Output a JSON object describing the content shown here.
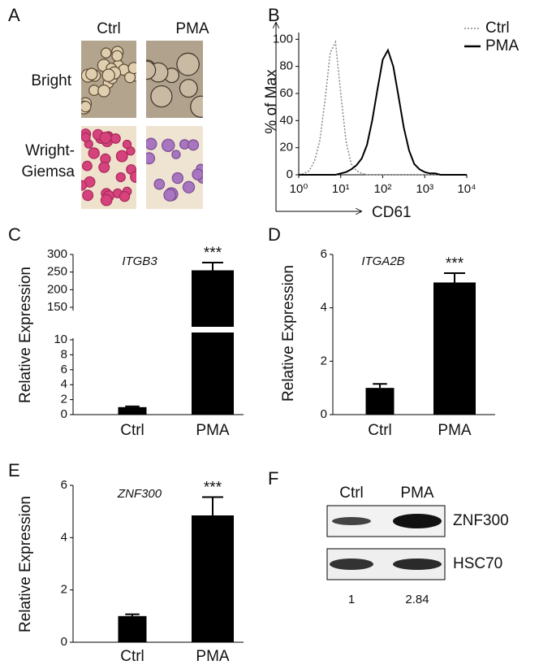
{
  "panel_a": {
    "label": "A",
    "columns": [
      "Ctrl",
      "PMA"
    ],
    "rows": [
      {
        "lines": [
          "Bright"
        ]
      },
      {
        "lines": [
          "Wright-",
          "Giemsa"
        ]
      }
    ]
  },
  "panel_f": {
    "label": "F",
    "lanes": [
      "Ctrl",
      "PMA"
    ],
    "bands": [
      "ZNF300",
      "HSC70"
    ],
    "quantification": [
      1,
      2.84
    ]
  },
  "chart_data": [
    {
      "type": "line",
      "label": "B",
      "xlabel": "CD61",
      "ylabel": "% of Max",
      "xscale": "log",
      "x": [
        1,
        1.33,
        1.78,
        2.37,
        3.16,
        4.22,
        5.62,
        7.5,
        10,
        13.3,
        17.8,
        23.7,
        31.6,
        42.2,
        56.2,
        75,
        100,
        133,
        178,
        237,
        316,
        422,
        562,
        750,
        1000,
        1330,
        1780,
        2370,
        3160,
        4220,
        5620,
        7500,
        10000
      ],
      "series": [
        {
          "name": "Ctrl",
          "color": "#888888",
          "style": "dotted",
          "values": [
            0,
            1,
            3,
            10,
            25,
            55,
            90,
            98,
            60,
            25,
            8,
            3,
            1,
            0,
            0,
            0,
            0,
            0,
            0,
            0,
            0,
            0,
            0,
            0,
            0,
            0,
            0,
            0,
            0,
            0,
            0,
            0,
            0
          ]
        },
        {
          "name": "PMA",
          "color": "#000000",
          "style": "solid",
          "values": [
            0,
            0,
            0,
            0,
            0,
            0,
            0,
            0,
            1,
            2,
            4,
            7,
            12,
            22,
            40,
            63,
            85,
            92,
            80,
            58,
            35,
            18,
            8,
            4,
            2,
            1,
            1,
            0,
            0,
            0,
            0,
            0,
            0
          ]
        }
      ],
      "xlim": [
        1,
        10000
      ],
      "xticks": [
        {
          "value": 1,
          "label": "10⁰"
        },
        {
          "value": 10,
          "label": "10¹"
        },
        {
          "value": 100,
          "label": "10²"
        },
        {
          "value": 1000,
          "label": "10³"
        },
        {
          "value": 10000,
          "label": "10⁴"
        }
      ],
      "ylim": [
        0,
        105
      ],
      "yticks": [
        0,
        20,
        40,
        60,
        80,
        100
      ],
      "legend": "top-right"
    },
    {
      "type": "bar",
      "label": "C",
      "title": "ITGB3",
      "ylabel": "Relative Expression",
      "categories": [
        "Ctrl",
        "PMA"
      ],
      "values": [
        1.0,
        255
      ],
      "errors": [
        0.1,
        22
      ],
      "color": "#000000",
      "annotations": [
        null,
        "***"
      ],
      "ylim": [
        0,
        300
      ],
      "y_break": [
        10,
        150
      ],
      "yticks": [
        0,
        2,
        4,
        6,
        8,
        10,
        150,
        200,
        250,
        300
      ]
    },
    {
      "type": "bar",
      "label": "D",
      "title": "ITGA2B",
      "ylabel": "Relative Expression",
      "categories": [
        "Ctrl",
        "PMA"
      ],
      "values": [
        1.0,
        4.95
      ],
      "errors": [
        0.15,
        0.35
      ],
      "color": "#000000",
      "annotations": [
        null,
        "***"
      ],
      "ylim": [
        0,
        6
      ],
      "yticks": [
        0,
        2,
        4,
        6
      ]
    },
    {
      "type": "bar",
      "label": "E",
      "title": "ZNF300",
      "ylabel": "Relative Expression",
      "categories": [
        "Ctrl",
        "PMA"
      ],
      "values": [
        1.0,
        4.85
      ],
      "errors": [
        0.07,
        0.7
      ],
      "color": "#000000",
      "annotations": [
        null,
        "***"
      ],
      "ylim": [
        0,
        6
      ],
      "yticks": [
        0,
        2,
        4,
        6
      ]
    }
  ]
}
